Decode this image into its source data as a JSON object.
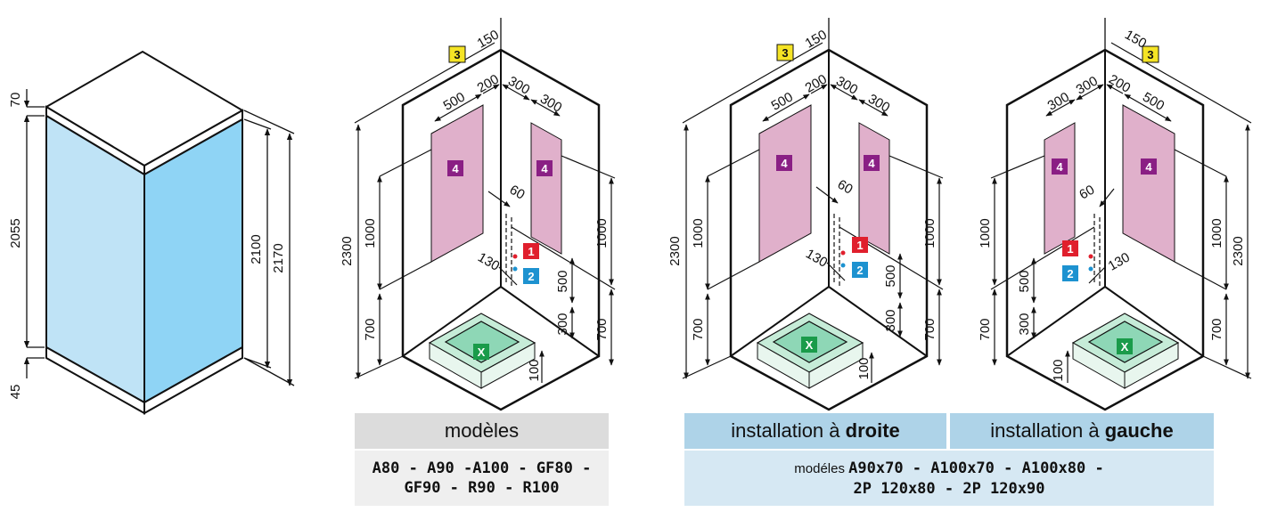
{
  "figure1": {
    "dims": {
      "top_gap": "70",
      "body_height": "2055",
      "bottom_gap": "45",
      "glass_height": "2100",
      "total_height": "2170"
    }
  },
  "figure2": {
    "dims": {
      "d150": "150",
      "d500": "500",
      "d200": "200",
      "d300a": "300",
      "d300b": "300",
      "d60": "60",
      "d130": "130",
      "d2300": "2300",
      "d1000_left": "1000",
      "d700_left": "700",
      "d1000_right": "1000",
      "d700_right": "700",
      "d500_valve": "500",
      "d300_valve": "300",
      "d100": "100"
    },
    "tags": {
      "t3": "3",
      "t4a": "4",
      "t4b": "4",
      "t1": "1",
      "t2": "2",
      "tx": "X"
    }
  },
  "figure3": {
    "dims": {
      "d150": "150",
      "d500": "500",
      "d200": "200",
      "d300a": "300",
      "d300b": "300",
      "d60": "60",
      "d130": "130",
      "d2300": "2300",
      "d1000_left": "1000",
      "d700_left": "700",
      "d1000_right": "1000",
      "d700_right": "700",
      "d500_valve": "500",
      "d300_valve": "300",
      "d100": "100"
    },
    "tags": {
      "t3": "3",
      "t4a": "4",
      "t4b": "4",
      "t1": "1",
      "t2": "2",
      "tx": "X"
    }
  },
  "figure4": {
    "dims": {
      "d150": "150",
      "d300a": "300",
      "d300b": "300",
      "d200": "200",
      "d500": "500",
      "d60": "60",
      "d130": "130",
      "d2300": "2300",
      "d1000_left": "1000",
      "d700_left": "700",
      "d1000_right": "1000",
      "d700_right": "700",
      "d500_valve": "500",
      "d300_valve": "300",
      "d100": "100"
    },
    "tags": {
      "t3": "3",
      "t4a": "4",
      "t4b": "4",
      "t1": "1",
      "t2": "2",
      "tx": "X"
    }
  },
  "labels": {
    "models_header": "modèles",
    "models_list_line1": "A80 - A90 -A100 - GF80 -",
    "models_list_line2": "GF90 - R90 - R100",
    "right_header_prefix": "installation à ",
    "right_header_bold": "droite",
    "left_header_prefix": "installation à ",
    "left_header_bold": "gauche",
    "models2_prefix": "modéles ",
    "models2_line1": "A90x70 - A100x70 - A100x80 -",
    "models2_line2": "2P 120x80 - 2P 120x90"
  },
  "colors": {
    "glass_left": "#bfe3f6",
    "glass_right": "#8fd4f5",
    "zone_pink": "#e0b0cb",
    "tray_green": "#8ed7b6",
    "tag_yellow": "#f5e425",
    "tag_purple": "#8a1f84",
    "tag_red": "#e01f2d",
    "tag_blue": "#1d92d0",
    "tag_green": "#1a9b4a",
    "header_grey": "#dcdcdc",
    "sub_grey": "#efefef",
    "header_blue": "#aed3e8",
    "sub_blue": "#d6e8f3"
  }
}
